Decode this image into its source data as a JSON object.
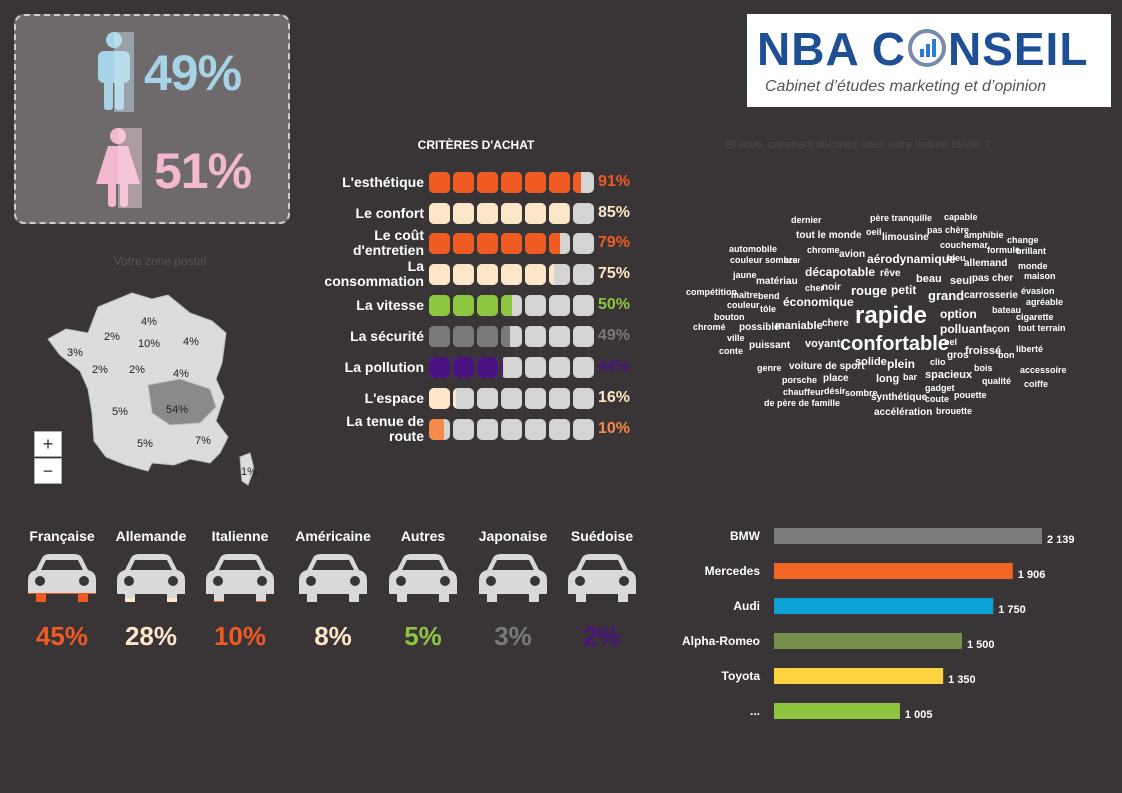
{
  "gender": {
    "male_pct": "49%",
    "female_pct": "51%"
  },
  "logo": {
    "title_left": "NBA C",
    "title_right": "NSEIL",
    "subtitle": "Cabinet d’études marketing et d’opinion"
  },
  "criteria": {
    "title": "CRITÈRES D'ACHAT",
    "items": [
      {
        "label": "L'esthétique",
        "value": "91%",
        "score": 0.91,
        "color": "#f05a23"
      },
      {
        "label": "Le confort",
        "value": "85%",
        "score": 0.85,
        "color": "#fde7c8"
      },
      {
        "label": "Le coût d'entretien",
        "value": "79%",
        "score": 0.79,
        "color": "#f05a23"
      },
      {
        "label": "La consommation",
        "value": "75%",
        "score": 0.75,
        "color": "#fde7c8"
      },
      {
        "label": "La vitesse",
        "value": "50%",
        "score": 0.5,
        "color": "#8dc63f"
      },
      {
        "label": "La sécurité",
        "value": "49%",
        "score": 0.49,
        "color": "#7a7a7a"
      },
      {
        "label": "La pollution",
        "value": "44%",
        "score": 0.44,
        "color": "#4b1282"
      },
      {
        "label": "L'espace",
        "value": "16%",
        "score": 0.16,
        "color": "#fde7c8"
      },
      {
        "label": "La tenue de route",
        "value": "10%",
        "score": 0.1,
        "color": "#f58a4b"
      }
    ]
  },
  "map": {
    "title": "Votre zone postal",
    "zoom_in": "+",
    "zoom_out": "−",
    "labels": [
      "4%",
      "2%",
      "10%",
      "4%",
      "3%",
      "2%",
      "2%",
      "4%",
      "5%",
      "54%",
      "5%",
      "7%",
      "1%"
    ]
  },
  "cloud": {
    "title": "Et vous, comment décririez-vous votre voiture idéale ?",
    "words": [
      "dernier",
      "père tranquille",
      "capable",
      "tout le monde",
      "oeil",
      "pas chère",
      "amphibie",
      "change",
      "limousine",
      "couchemar",
      "formule",
      "brillant",
      "automobile",
      "chrome",
      "avion",
      "aérodynamique",
      "bleu",
      "allemand",
      "monde",
      "couleur sombre",
      "azur",
      "décapotable",
      "rêve",
      "beau",
      "seul",
      "pas cher",
      "maison",
      "jaune",
      "matériau",
      "cher",
      "noir",
      "rouge",
      "petit",
      "grand",
      "carrosserie",
      "évasion",
      "compétition",
      "maître",
      "bend",
      "économique",
      "bateau",
      "agréable",
      "couleur",
      "tôle",
      "rapide",
      "option",
      "cigarette",
      "bouton",
      "possible",
      "maniable",
      "chere",
      "polluant",
      "façon",
      "tout terrain",
      "chromé",
      "ville",
      "voyant",
      "confortable",
      "bel",
      "liberté",
      "conte",
      "puissant",
      "gros",
      "froissé",
      "bon",
      "genre",
      "voiture de sport",
      "solide",
      "plein",
      "clio",
      "bois",
      "accessoire",
      "porsche",
      "place",
      "long",
      "bar",
      "spacieux",
      "qualité",
      "coiffe",
      "chauffeur",
      "désir",
      "sombre",
      "gadget",
      "synthétique",
      "pouette",
      "de père de famille",
      "coute",
      "accélération",
      "brouette"
    ]
  },
  "cars": [
    {
      "name": "Française",
      "pct": "45%",
      "color": "#f05a23"
    },
    {
      "name": "Allemande",
      "pct": "28%",
      "color": "#fde7c8"
    },
    {
      "name": "Italienne",
      "pct": "10%",
      "color": "#f05a23"
    },
    {
      "name": "Américaine",
      "pct": "8%",
      "color": "#fde7c8"
    },
    {
      "name": "Autres",
      "pct": "5%",
      "color": "#8dc63f"
    },
    {
      "name": "Japonaise",
      "pct": "3%",
      "color": "#7a7a7a"
    },
    {
      "name": "Suédoise",
      "pct": "2%",
      "color": "#4b1282"
    }
  ],
  "chart_data": {
    "type": "bar",
    "orientation": "horizontal",
    "categories": [
      "BMW",
      "Mercedes",
      "Audi",
      "Alpha-Romeo",
      "Toyota",
      "..."
    ],
    "values": [
      2139,
      1906,
      1750,
      1500,
      1350,
      1005
    ],
    "value_labels": [
      "2 139",
      "1 906",
      "1 750",
      "1 500",
      "1 350",
      "1 005"
    ],
    "colors": [
      "#7b7b7d",
      "#f26525",
      "#0ea1d6",
      "#75914b",
      "#fdd440",
      "#8ec53f"
    ],
    "xlim": [
      0,
      2139
    ],
    "grid": false
  }
}
